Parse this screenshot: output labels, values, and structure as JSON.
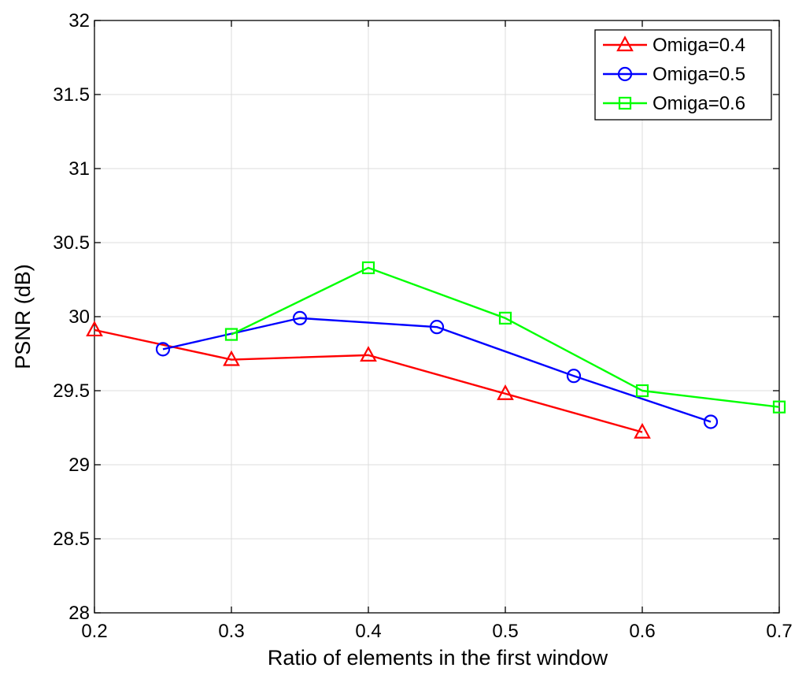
{
  "chart_data": {
    "type": "line",
    "title": "",
    "xlabel": "Ratio of elements in the first window",
    "ylabel": "PSNR (dB)",
    "xlim": [
      0.2,
      0.7
    ],
    "ylim": [
      28,
      32
    ],
    "xticks": [
      0.2,
      0.3,
      0.4,
      0.5,
      0.6,
      0.7
    ],
    "xtick_labels": [
      "0.2",
      "0.3",
      "0.4",
      "0.5",
      "0.6",
      "0.7"
    ],
    "yticks": [
      28,
      28.5,
      29,
      29.5,
      30,
      30.5,
      31,
      31.5,
      32
    ],
    "ytick_labels": [
      "28",
      "28.5",
      "29",
      "29.5",
      "30",
      "30.5",
      "31",
      "31.5",
      "32"
    ],
    "grid": true,
    "legend_position": "top-right",
    "series": [
      {
        "name": "Omiga=0.4",
        "color": "#ff0000",
        "marker": "triangle",
        "x": [
          0.2,
          0.3,
          0.4,
          0.5,
          0.6
        ],
        "y": [
          29.91,
          29.71,
          29.74,
          29.48,
          29.22
        ]
      },
      {
        "name": "Omiga=0.5",
        "color": "#0000ff",
        "marker": "circle",
        "x": [
          0.25,
          0.35,
          0.45,
          0.55,
          0.65
        ],
        "y": [
          29.78,
          29.99,
          29.93,
          29.6,
          29.29
        ]
      },
      {
        "name": "Omiga=0.6",
        "color": "#00ff00",
        "marker": "square",
        "x": [
          0.3,
          0.4,
          0.5,
          0.6,
          0.7
        ],
        "y": [
          29.88,
          30.33,
          29.99,
          29.5,
          29.39
        ]
      }
    ]
  }
}
